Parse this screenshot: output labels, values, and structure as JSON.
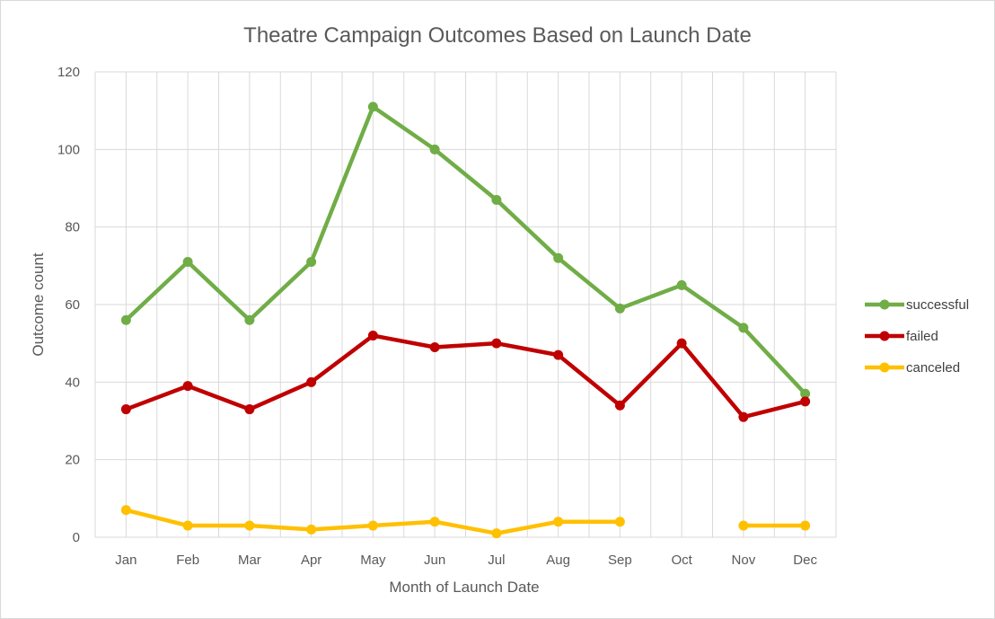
{
  "chart_data": {
    "type": "line",
    "title": "Theatre Campaign Outcomes Based on Launch Date",
    "xlabel": "Month of Launch Date",
    "ylabel": "Outcome count",
    "categories": [
      "Jan",
      "Feb",
      "Mar",
      "Apr",
      "May",
      "Jun",
      "Jul",
      "Aug",
      "Sep",
      "Oct",
      "Nov",
      "Dec"
    ],
    "ylim": [
      0,
      120
    ],
    "yticks": [
      0,
      20,
      40,
      60,
      80,
      100,
      120
    ],
    "grid": true,
    "legend_position": "right",
    "series": [
      {
        "name": "successful",
        "color": "#70AD47",
        "values": [
          56,
          71,
          56,
          71,
          111,
          100,
          87,
          72,
          59,
          65,
          54,
          37
        ]
      },
      {
        "name": "failed",
        "color": "#C00000",
        "values": [
          33,
          39,
          33,
          40,
          52,
          49,
          50,
          47,
          34,
          50,
          31,
          35
        ]
      },
      {
        "name": "canceled",
        "color": "#FFC000",
        "values": [
          7,
          3,
          3,
          2,
          3,
          4,
          1,
          4,
          4,
          null,
          3,
          3
        ]
      }
    ]
  }
}
